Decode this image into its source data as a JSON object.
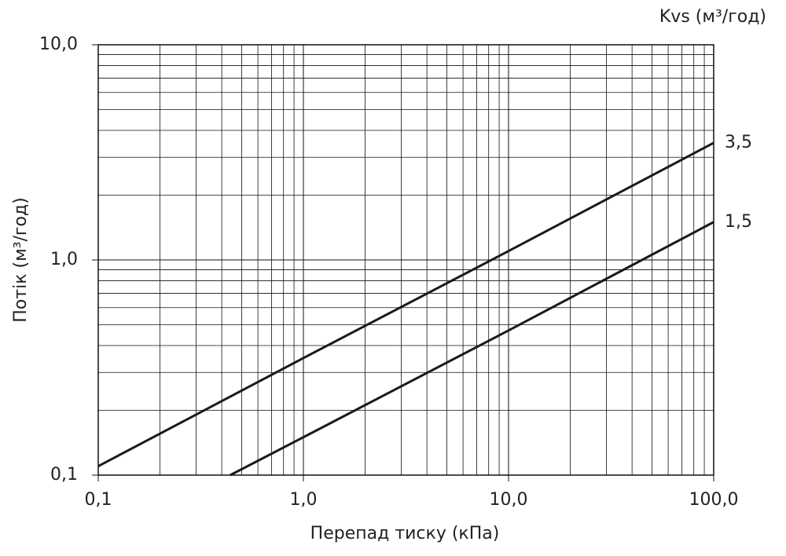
{
  "chart_data": {
    "type": "line",
    "legend_title": "Kvs (м³/год)",
    "x_label": "Перепад тиску (кПа)",
    "y_label": "Потік (м³/год)",
    "x_scale": "log",
    "y_scale": "log",
    "xlim": [
      0.1,
      100
    ],
    "ylim": [
      0.1,
      10
    ],
    "xticks": [
      {
        "value": 0.1,
        "label": "0,1"
      },
      {
        "value": 1,
        "label": "1,0"
      },
      {
        "value": 10,
        "label": "10,0"
      },
      {
        "value": 100,
        "label": "100,0"
      }
    ],
    "yticks": [
      {
        "value": 0.1,
        "label": "0,1"
      },
      {
        "value": 1,
        "label": "1,0"
      },
      {
        "value": 10,
        "label": "10,0"
      }
    ],
    "grid": true,
    "minor_grid": true,
    "series": [
      {
        "name": "3,5",
        "color": "#1a1a1a",
        "x": [
          0.1,
          1,
          10,
          100
        ],
        "values": [
          0.11,
          0.35,
          1.1,
          3.5
        ]
      },
      {
        "name": "1,5",
        "color": "#1a1a1a",
        "x": [
          0.44,
          1,
          10,
          100
        ],
        "values": [
          0.1,
          0.15,
          0.47,
          1.5
        ]
      }
    ]
  }
}
